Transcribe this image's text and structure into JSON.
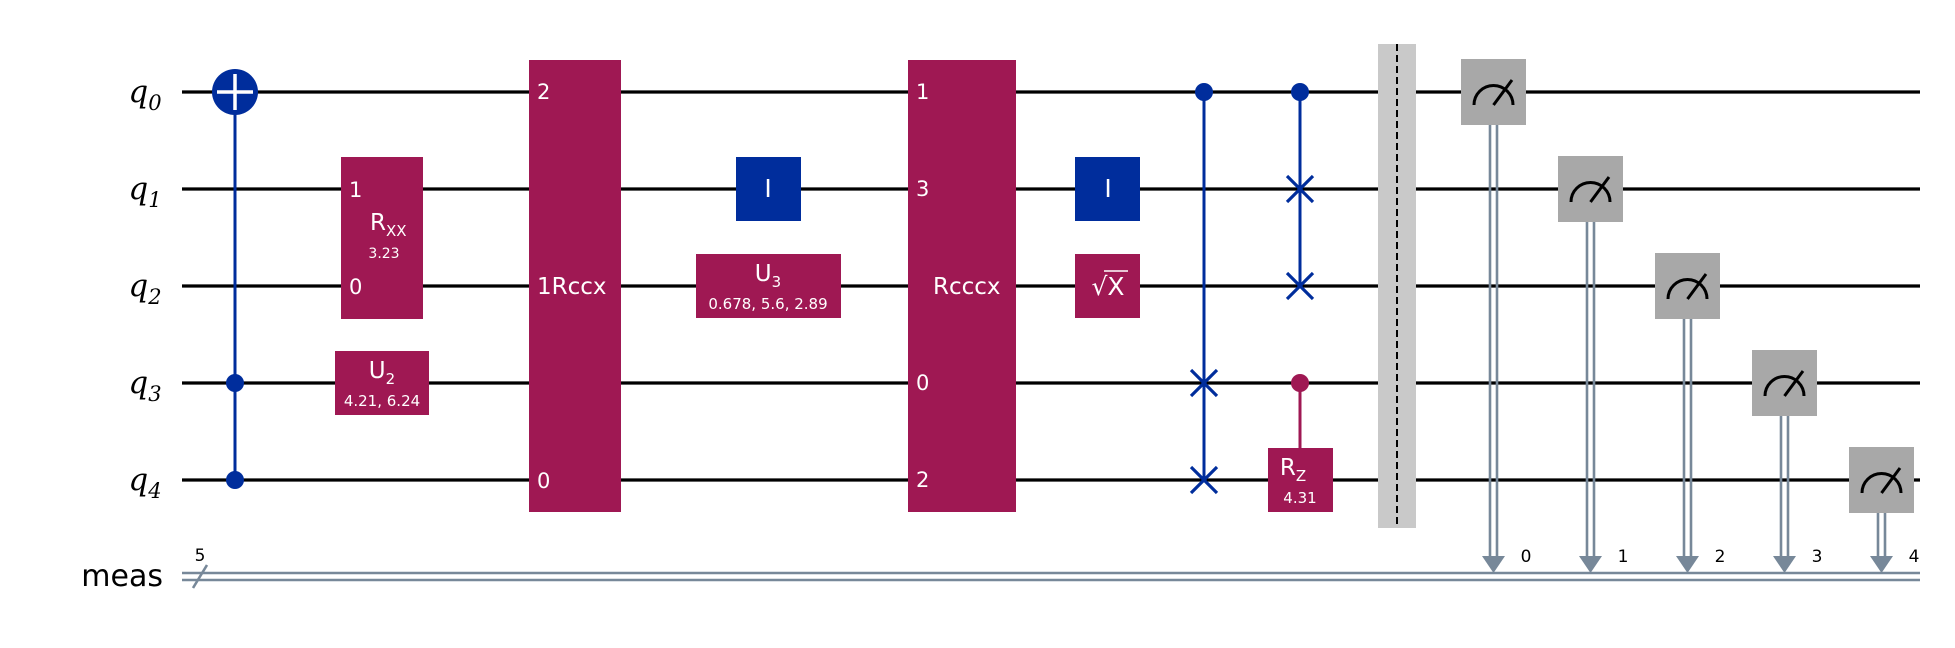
{
  "colors": {
    "wire": "#000000",
    "classical": "#778899",
    "multi_gate": "#9f1853",
    "blue_gate": "#002d9c",
    "measure": "#a8a8a8",
    "barrier": "#c9c9c9"
  },
  "qubits": [
    {
      "base": "q",
      "index": "0"
    },
    {
      "base": "q",
      "index": "1"
    },
    {
      "base": "q",
      "index": "2"
    },
    {
      "base": "q",
      "index": "3"
    },
    {
      "base": "q",
      "index": "4"
    }
  ],
  "classical": {
    "label": "meas",
    "width": "5",
    "bits": [
      "0",
      "1",
      "2",
      "3",
      "4"
    ]
  },
  "gates": {
    "rxx": {
      "name": "R",
      "sub": "XX",
      "param": "3.23",
      "top_port": "1",
      "bottom_port": "0"
    },
    "u2": {
      "name": "U",
      "sub": "2",
      "param": "4.21, 6.24"
    },
    "rccx": {
      "name": "1Rccx",
      "ports": [
        "2",
        "0"
      ]
    },
    "id1": {
      "name": "I"
    },
    "u3": {
      "name": "U",
      "sub": "3",
      "param": "0.678, 5.6, 2.89"
    },
    "rcccx": {
      "name": "Rcccx",
      "ports": [
        "1",
        "3",
        "0",
        "2"
      ]
    },
    "id2": {
      "name": "I"
    },
    "sx": {
      "name": "X",
      "radical": "√"
    },
    "rz": {
      "name": "R",
      "sub": "Z",
      "param": "4.31"
    }
  }
}
